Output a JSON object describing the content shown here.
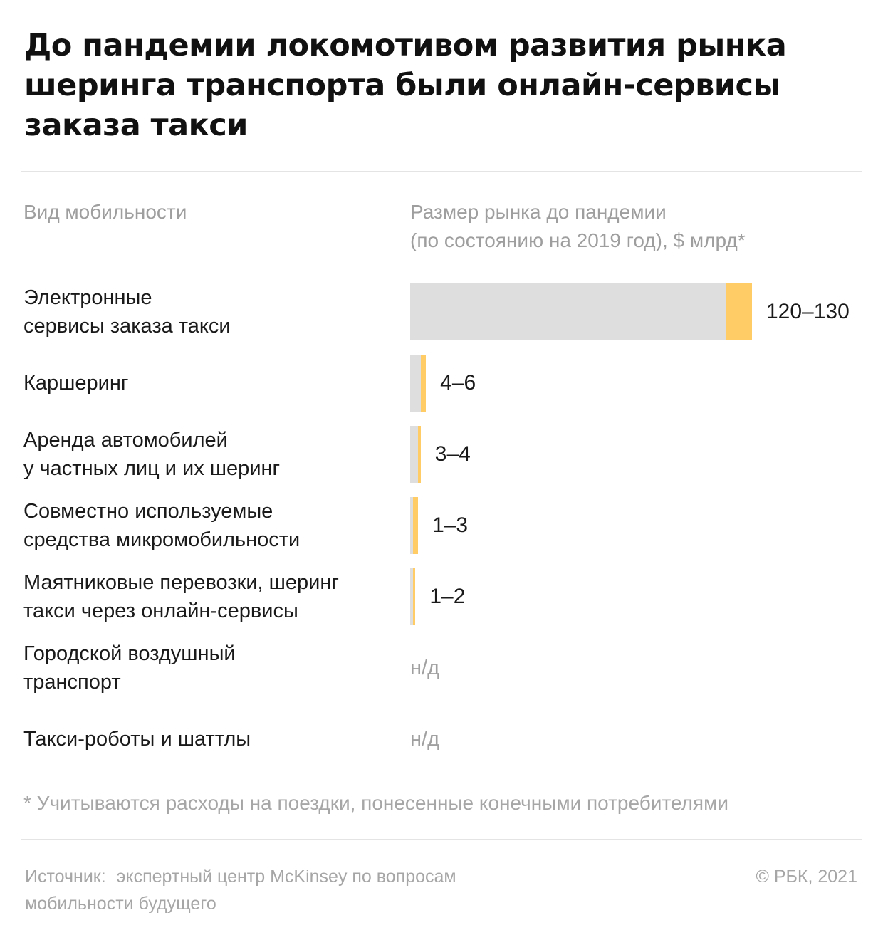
{
  "header": {
    "title": "До пандемии локомотивом развития рынка шеринга транспорта были онлайн-сервисы заказа такси"
  },
  "columns": {
    "category": "Вид мобильности",
    "value_line1": "Размер рынка до пандемии",
    "value_line2": "(по состоянию на 2019 год), $ млрд*"
  },
  "colors": {
    "bar_low": "#dedede",
    "bar_range": "#ffcc66"
  },
  "chart_data": {
    "type": "bar",
    "orientation": "horizontal",
    "unit": "$ млрд",
    "xlim": [
      0,
      130
    ],
    "grid": false,
    "legend": "none",
    "rows": [
      {
        "label": "Электронные сервисы заказа такси",
        "label_lines": [
          "Электронные",
          "сервисы заказа такси"
        ],
        "low": 120,
        "high": 130,
        "value_label": "120–130"
      },
      {
        "label": "Каршеринг",
        "label_lines": [
          "Каршеринг"
        ],
        "low": 4,
        "high": 6,
        "value_label": "4–6"
      },
      {
        "label": "Аренда автомобилей у частных лиц и их шеринг",
        "label_lines": [
          "Аренда автомобилей",
          "у частных лиц и их шеринг"
        ],
        "low": 3,
        "high": 4,
        "value_label": "3–4"
      },
      {
        "label": "Совместно используемые средства микромобильности",
        "label_lines": [
          "Совместно используемые",
          "средства микромобильности"
        ],
        "low": 1,
        "high": 3,
        "value_label": "1–3"
      },
      {
        "label": "Маятниковые перевозки, шеринг такси через онлайн-сервисы",
        "label_lines": [
          "Маятниковые перевозки, шеринг",
          "такси через онлайн-сервисы"
        ],
        "low": 1,
        "high": 2,
        "value_label": "1–2"
      },
      {
        "label": "Городской воздушный транспорт",
        "label_lines": [
          "Городской воздушный",
          "транспорт"
        ],
        "low": null,
        "high": null,
        "value_label": "н/д"
      },
      {
        "label": "Такси-роботы и шаттлы",
        "label_lines": [
          "Такси-роботы и шаттлы"
        ],
        "low": null,
        "high": null,
        "value_label": "н/д"
      }
    ]
  },
  "footnote": "* Учитываются расходы на поездки, понесенные конечными потребителями",
  "footer": {
    "source_label": "Источник:",
    "source_text": "экспертный центр McKinsey по вопросам мобильности будущего",
    "copyright": "© РБК, 2021"
  }
}
